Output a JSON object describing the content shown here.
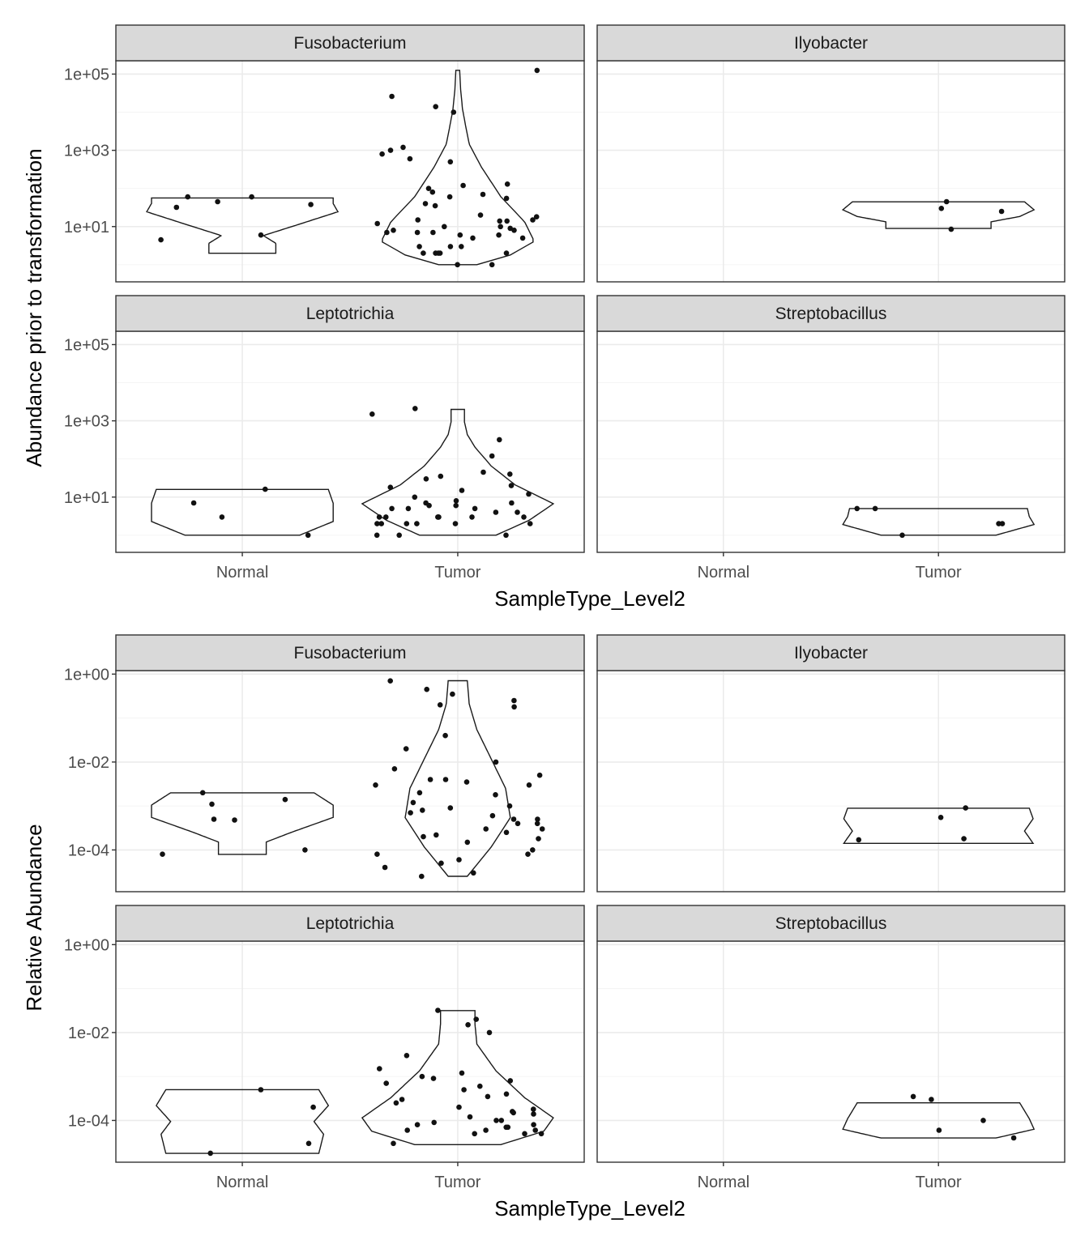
{
  "chart_data": [
    {
      "type": "violin",
      "ylabel": "Abundance prior to transformation",
      "xlabel": "SampleType_Level2",
      "y_scale": "log10",
      "y_ticks": [
        "1e+05",
        "1e+03",
        "1e+01"
      ],
      "x_categories": [
        "Normal",
        "Tumor"
      ],
      "facets": [
        {
          "name": "Fusobacterium",
          "groups": {
            "Normal": {
              "violin_log_range": [
                0.3,
                1.75
              ],
              "points": [
                60,
                60,
                45,
                38,
                32,
                6,
                4.5
              ]
            },
            "Tumor": {
              "violin_log_range": [
                0.0,
                5.1
              ],
              "points": [
                125000,
                26000,
                14000,
                10000,
                1200,
                1000,
                800,
                600,
                500,
                130,
                120,
                100,
                80,
                70,
                60,
                55,
                40,
                35,
                20,
                18,
                15,
                15,
                14,
                14,
                12,
                10,
                10,
                9,
                8,
                8,
                7,
                7,
                7,
                6,
                6,
                5,
                5,
                3,
                3,
                3,
                2,
                2,
                2,
                2,
                2,
                1,
                1
              ]
            }
          }
        },
        {
          "name": "Ilyobacter",
          "groups": {
            "Normal": {
              "violin_log_range": null,
              "points": []
            },
            "Tumor": {
              "violin_log_range": [
                0.95,
                1.65
              ],
              "points": [
                45,
                30,
                25,
                8.5
              ]
            }
          }
        },
        {
          "name": "Leptotrichia",
          "groups": {
            "Normal": {
              "violin_log_range": [
                0.0,
                1.2
              ],
              "points": [
                16,
                7,
                3,
                1
              ]
            },
            "Tumor": {
              "violin_log_range": [
                0.0,
                3.3
              ],
              "points": [
                2100,
                1500,
                320,
                120,
                45,
                40,
                35,
                30,
                20,
                18,
                15,
                12,
                10,
                8,
                7,
                7,
                6,
                6,
                5,
                5,
                5,
                4,
                4,
                3,
                3,
                3,
                3,
                3,
                3,
                3,
                2,
                2,
                2,
                2,
                2,
                2,
                1,
                1,
                1
              ]
            }
          }
        },
        {
          "name": "Streptobacillus",
          "groups": {
            "Normal": {
              "violin_log_range": null,
              "points": []
            },
            "Tumor": {
              "violin_log_range": [
                0.0,
                0.7
              ],
              "points": [
                5,
                5,
                2,
                2,
                1
              ]
            }
          }
        }
      ]
    },
    {
      "type": "violin",
      "ylabel": "Relative Abundance",
      "xlabel": "SampleType_Level2",
      "y_scale": "log10",
      "y_ticks": [
        "1e+00",
        "1e-02",
        "1e-04"
      ],
      "x_categories": [
        "Normal",
        "Tumor"
      ],
      "facets": [
        {
          "name": "Fusobacterium",
          "groups": {
            "Normal": {
              "violin_log_range": [
                -4.1,
                -2.7
              ],
              "points": [
                0.002,
                0.0014,
                0.0011,
                0.0005,
                0.00048,
                0.0001,
                8e-05
              ]
            },
            "Tumor": {
              "violin_log_range": [
                -4.6,
                -0.15
              ],
              "points": [
                0.7,
                0.45,
                0.35,
                0.25,
                0.2,
                0.18,
                0.04,
                0.02,
                0.01,
                0.007,
                0.005,
                0.004,
                0.004,
                0.0035,
                0.003,
                0.003,
                0.002,
                0.0018,
                0.0012,
                0.001,
                0.0009,
                0.0008,
                0.0007,
                0.0006,
                0.0005,
                0.0005,
                0.0004,
                0.0004,
                0.0003,
                0.0003,
                0.00025,
                0.00022,
                0.0002,
                0.00018,
                0.00015,
                0.0001,
                8e-05,
                8e-05,
                6e-05,
                5e-05,
                4e-05,
                3e-05,
                2.5e-05
              ]
            }
          }
        },
        {
          "name": "Ilyobacter",
          "groups": {
            "Normal": {
              "violin_log_range": null,
              "points": []
            },
            "Tumor": {
              "violin_log_range": [
                -3.85,
                -3.05
              ],
              "points": [
                0.0009,
                0.00055,
                0.00018,
                0.00017
              ]
            }
          }
        },
        {
          "name": "Leptotrichia",
          "groups": {
            "Normal": {
              "violin_log_range": [
                -4.75,
                -3.3
              ],
              "points": [
                0.0005,
                0.0002,
                3e-05,
                1.8e-05
              ]
            },
            "Tumor": {
              "violin_log_range": [
                -4.55,
                -1.5
              ],
              "points": [
                0.032,
                0.02,
                0.015,
                0.01,
                0.003,
                0.0015,
                0.0012,
                0.001,
                0.0009,
                0.0008,
                0.0007,
                0.0006,
                0.0005,
                0.0004,
                0.00035,
                0.0003,
                0.00025,
                0.0002,
                0.00018,
                0.00016,
                0.00015,
                0.00014,
                0.00012,
                0.0001,
                0.0001,
                9e-05,
                8e-05,
                8e-05,
                7e-05,
                7e-05,
                6e-05,
                6e-05,
                6e-05,
                5e-05,
                5e-05,
                5e-05,
                3e-05
              ]
            }
          }
        },
        {
          "name": "Streptobacillus",
          "groups": {
            "Normal": {
              "violin_log_range": null,
              "points": []
            },
            "Tumor": {
              "violin_log_range": [
                -4.4,
                -3.6
              ],
              "points": [
                0.00035,
                0.0003,
                0.0001,
                6e-05,
                4e-05
              ]
            }
          }
        }
      ]
    }
  ]
}
